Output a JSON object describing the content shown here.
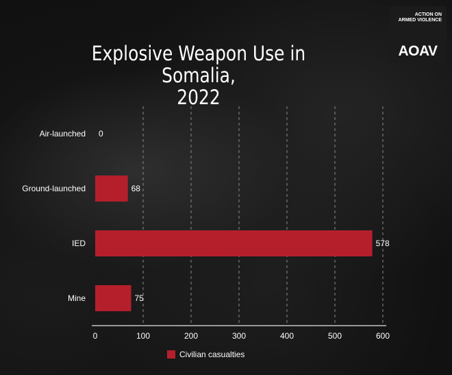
{
  "title_line1": "Explosive Weapon Use in Somalia,",
  "title_line2": "2022",
  "logo": {
    "org_line1": "ACTION ON",
    "org_line2": "ARMED VIOLENCE",
    "mark": "AOAV"
  },
  "chart_data": {
    "type": "bar",
    "orientation": "horizontal",
    "title": "Explosive Weapon Use in Somalia, 2022",
    "categories": [
      "Air-launched",
      "Ground-launched",
      "IED",
      "Mine"
    ],
    "series": [
      {
        "name": "Civilian casualties",
        "values": [
          0,
          68,
          578,
          75
        ],
        "color": "#b51f2c"
      }
    ],
    "x_ticks": [
      0,
      100,
      200,
      300,
      400,
      500,
      600
    ],
    "xlim": [
      0,
      600
    ],
    "grid": "vertical dashed",
    "legend_position": "bottom"
  }
}
